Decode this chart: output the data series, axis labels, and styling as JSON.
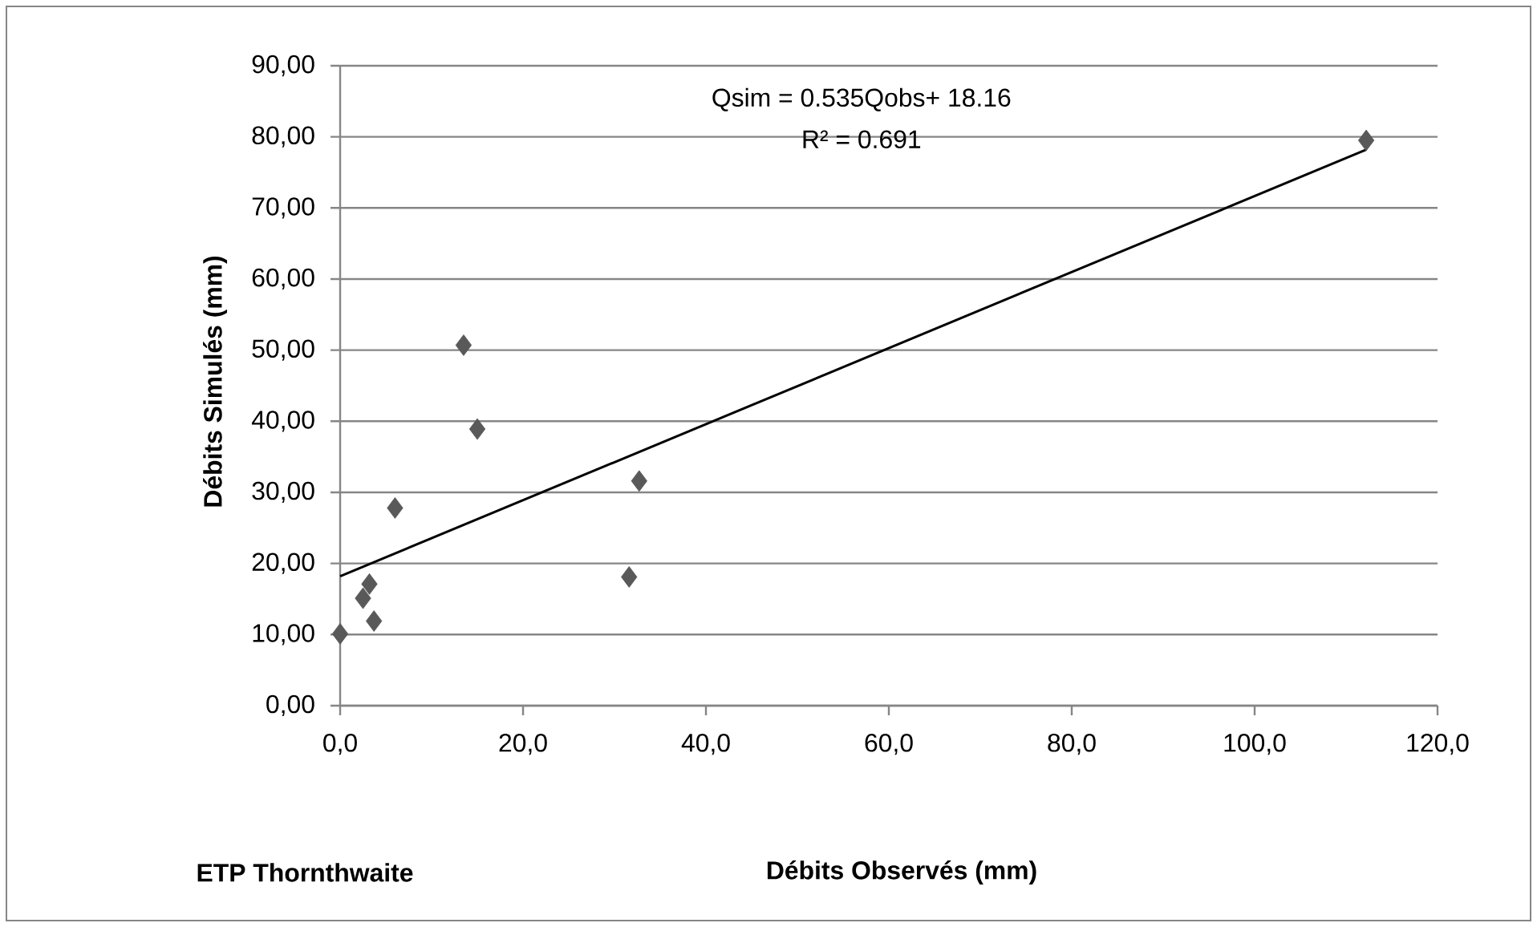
{
  "chart_data": {
    "type": "scatter",
    "xlabel": "Débits Observés (mm)",
    "ylabel": "Débits Simulés (mm)",
    "annotations": [
      "Qsim = 0.535Qobs+ 18.16",
      "R² = 0.691",
      "ETP Thornthwaite"
    ],
    "series": [
      {
        "color": "#595959",
        "marker": "diamond",
        "x": [
          0,
          2.5,
          3.2,
          3.7,
          6.0,
          13.5,
          15.0,
          31.6,
          32.7,
          112.2
        ],
        "values": [
          10.1,
          15.1,
          17.1,
          11.9,
          27.8,
          50.7,
          38.9,
          18.1,
          31.6,
          79.5
        ]
      },
      {
        "type": "line",
        "color": "#000000",
        "marker": "none",
        "line_style": "solid",
        "x": [
          0,
          112.2
        ],
        "values": [
          18.2,
          78.2
        ]
      }
    ],
    "xlim": [
      0,
      120
    ],
    "ylim": [
      0,
      90
    ],
    "xticks": [
      {
        "value": 0,
        "label": "0,0"
      },
      {
        "value": 20,
        "label": "20,0"
      },
      {
        "value": 40,
        "label": "40,0"
      },
      {
        "value": 60,
        "label": "60,0"
      },
      {
        "value": 80,
        "label": "80,0"
      },
      {
        "value": 100,
        "label": "100,0"
      },
      {
        "value": 120,
        "label": "120,0"
      }
    ],
    "yticks": [
      {
        "value": 0,
        "label": "0,00"
      },
      {
        "value": 10,
        "label": "10,00"
      },
      {
        "value": 20,
        "label": "20,00"
      },
      {
        "value": 30,
        "label": "30,00"
      },
      {
        "value": 40,
        "label": "40,00"
      },
      {
        "value": 50,
        "label": "50,00"
      },
      {
        "value": 60,
        "label": "60,00"
      },
      {
        "value": 70,
        "label": "70,00"
      },
      {
        "value": 80,
        "label": "80,00"
      },
      {
        "value": 90,
        "label": "90,00"
      }
    ],
    "grid": "y"
  }
}
